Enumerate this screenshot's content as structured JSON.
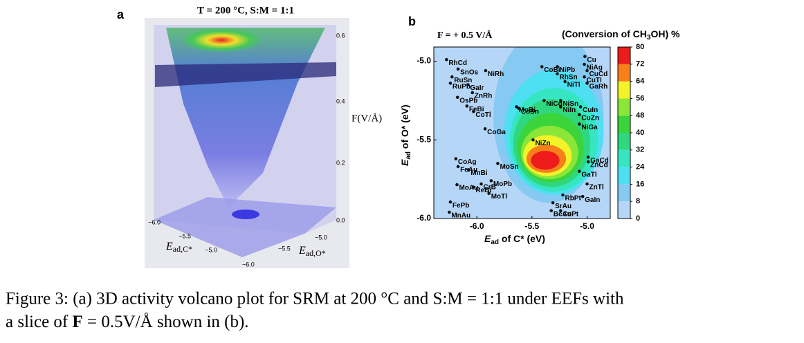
{
  "panel_a": {
    "letter": "a",
    "title": "T = 200 °C, S:M = 1:1",
    "z_ticks": [
      "0.6",
      "0.4",
      "0.2",
      "0.0"
    ],
    "z_label": "F(V/Å)",
    "c_ticks": [
      "−6.0",
      "−5.5",
      "−5.0"
    ],
    "o_ticks": [
      "−5.0",
      "−5.5",
      "−6.0"
    ],
    "c_label": {
      "main": "E",
      "sub": "ad,C*"
    },
    "o_label": {
      "main": "E",
      "sub": "ad,O*"
    }
  },
  "chart_data": {
    "type": "scatter",
    "letter": "b",
    "title": "F = + 0.5 V/Å",
    "colorbar_label": {
      "pre": "(Conversion of CH",
      "sub": "3",
      "post": "OH) %"
    },
    "xlabel": {
      "main": "E",
      "sub": "ad",
      "post": " of C* (eV)"
    },
    "ylabel": {
      "main": "E",
      "sub": "ad",
      "post": " of O* (eV)"
    },
    "xlim": [
      -6.39,
      -4.79
    ],
    "ylim": [
      -6.0,
      -4.91
    ],
    "xticks": [
      {
        "value": -6,
        "label": "-6.0"
      },
      {
        "value": -5.5,
        "label": "-5.5"
      },
      {
        "value": -5,
        "label": "-5.0"
      }
    ],
    "yticks": [
      {
        "value": -5,
        "label": "-5.0"
      },
      {
        "value": -5.5,
        "label": "-5.5"
      },
      {
        "value": -6,
        "label": "-6.0"
      }
    ],
    "colorbar_ticks": [
      0,
      8,
      16,
      24,
      32,
      40,
      48,
      56,
      64,
      72,
      80
    ],
    "colorbar_colors": [
      "#b5d6f7",
      "#86c9f2",
      "#4fdff2",
      "#36e6c2",
      "#2fd77e",
      "#3bd43a",
      "#8be63a",
      "#f3f32a",
      "#f7801a",
      "#ee1b1b"
    ],
    "contours": [
      {
        "level": 8,
        "cx": -5.35,
        "cy": -5.35,
        "rx": 0.5,
        "ry": 0.55
      },
      {
        "level": 16,
        "cx": -5.3,
        "cy": -5.45,
        "rx": 0.45,
        "ry": 0.4
      },
      {
        "level": 24,
        "cx": -5.3,
        "cy": -5.5,
        "rx": 0.4,
        "ry": 0.33
      },
      {
        "level": 32,
        "cx": -5.32,
        "cy": -5.52,
        "rx": 0.35,
        "ry": 0.28
      },
      {
        "level": 40,
        "cx": -5.33,
        "cy": -5.55,
        "rx": 0.3,
        "ry": 0.22
      },
      {
        "level": 48,
        "cx": -5.34,
        "cy": -5.58,
        "rx": 0.26,
        "ry": 0.17
      },
      {
        "level": 56,
        "cx": -5.36,
        "cy": -5.6,
        "rx": 0.22,
        "ry": 0.13
      },
      {
        "level": 64,
        "cx": -5.37,
        "cy": -5.62,
        "rx": 0.18,
        "ry": 0.09
      },
      {
        "level": 72,
        "cx": -5.38,
        "cy": -5.63,
        "rx": 0.13,
        "ry": 0.06
      }
    ],
    "labels": [
      "RhCd",
      "SnOs",
      "NiRh",
      "RuSn",
      "RuPb",
      "GaIr",
      "ZnRh",
      "OsPb",
      "FeBi",
      "CoTl",
      "CoGa",
      "CoAg",
      "FeAu",
      "MnBi",
      "MoSn",
      "CrB",
      "MoPb",
      "ReBi",
      "MoAu",
      "MoTl",
      "FePb",
      "MnAu",
      "CoBi",
      "NiPb",
      "RhSn",
      "NiTl",
      "Cu",
      "NiAg",
      "CuCd",
      "CuTl",
      "GaRh",
      "NiCd",
      "NiSn",
      "MoBi",
      "CoSn",
      "NiIn",
      "CuIn",
      "CuZn",
      "NiGa",
      "NiZn",
      "GaCd",
      "ZnCd",
      "GaTl",
      "ZnTl",
      "GaIn",
      "RbPt",
      "SrAu",
      "BeAu",
      "CsPt"
    ],
    "x": [
      -6.275,
      -6.17,
      -5.92,
      -6.225,
      -6.24,
      -6.08,
      -6.04,
      -6.175,
      -6.09,
      -6.03,
      -5.925,
      -6.19,
      -6.17,
      -6.075,
      -5.81,
      -5.96,
      -5.87,
      -6.03,
      -6.18,
      -5.89,
      -6.24,
      -6.25,
      -5.41,
      -5.27,
      -5.27,
      -5.2,
      -5.02,
      -5.025,
      -5.0,
      -5.025,
      -5.0,
      -5.39,
      -5.24,
      -5.64,
      -5.62,
      -5.24,
      -5.06,
      -5.07,
      -5.07,
      -5.49,
      -4.99,
      -4.99,
      -5.07,
      -5.0,
      -5.04,
      -5.22,
      -5.31,
      -5.325,
      -5.24
    ],
    "y": [
      -4.99,
      -5.05,
      -5.06,
      -5.1,
      -5.14,
      -5.15,
      -5.2,
      -5.23,
      -5.285,
      -5.32,
      -5.43,
      -5.62,
      -5.67,
      -5.69,
      -5.65,
      -5.78,
      -5.76,
      -5.8,
      -5.785,
      -5.84,
      -5.895,
      -5.96,
      -5.035,
      -5.035,
      -5.08,
      -5.13,
      -4.97,
      -5.02,
      -5.06,
      -5.1,
      -5.14,
      -5.25,
      -5.25,
      -5.29,
      -5.3,
      -5.29,
      -5.29,
      -5.34,
      -5.4,
      -5.5,
      -5.61,
      -5.64,
      -5.7,
      -5.78,
      -5.86,
      -5.85,
      -5.9,
      -5.95,
      -5.95
    ]
  },
  "caption": {
    "line1": "Figure 3: (a) 3D activity volcano plot for SRM at 200 °C and S:M = 1:1 under EEFs with",
    "line2_pre": "a slice of ",
    "line2_bold": "F",
    "line2_post": " = 0.5V/Å shown in (b)."
  }
}
